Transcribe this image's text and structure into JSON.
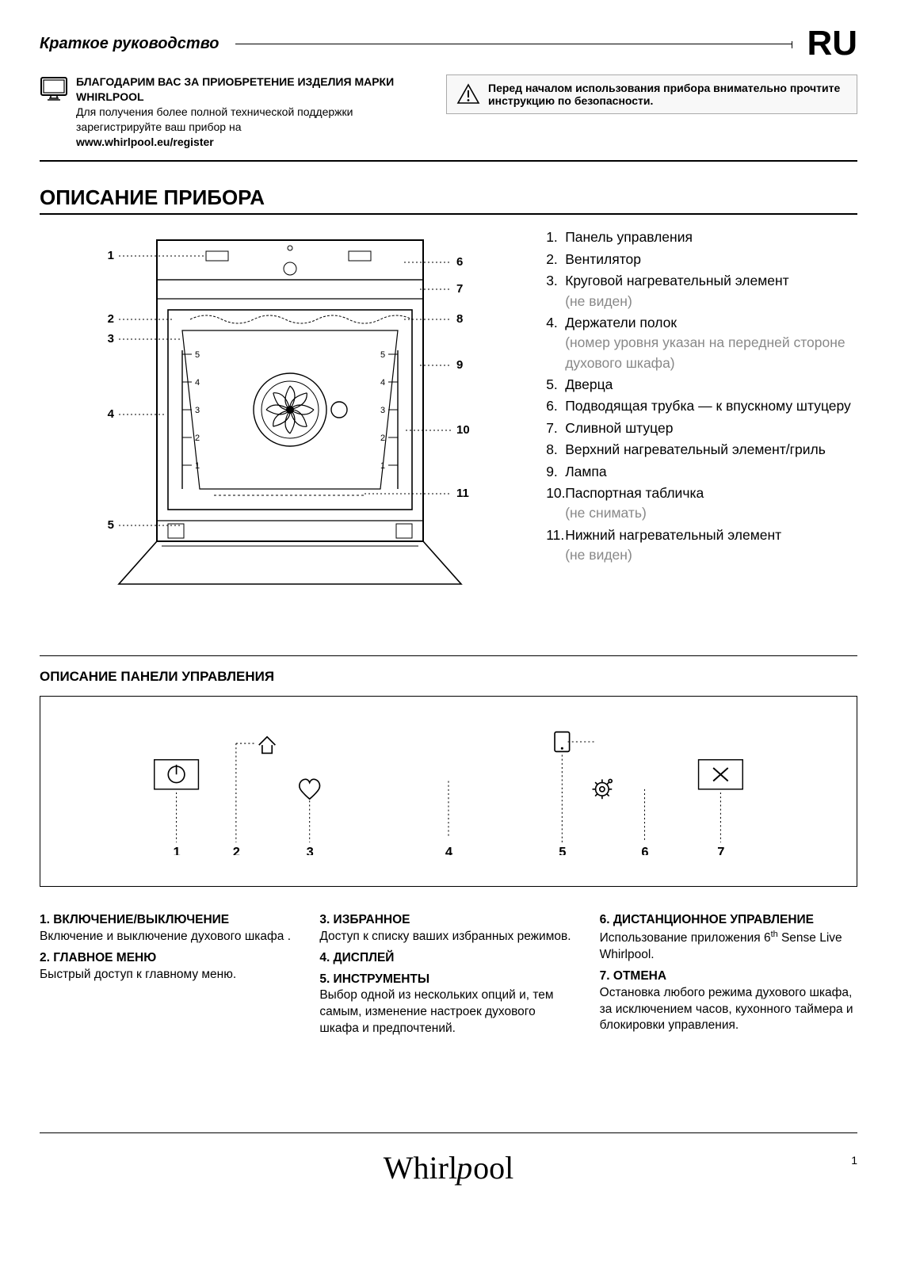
{
  "header": {
    "guide_title": "Краткое руководство",
    "lang": "RU"
  },
  "intro": {
    "thanks_bold": "БЛАГОДАРИМ ВАС ЗА ПРИОБРЕТЕНИЕ ИЗДЕЛИЯ МАРКИ WHIRLPOOL",
    "support": "Для получения более полной технической поддержки зарегистрируйте ваш прибор на",
    "url": "www.whirlpool.eu/register",
    "safety_bold_prefix": "Перед началом использования прибора внимательно прочтите инструкцию по безопасности."
  },
  "product": {
    "section_title": "ОПИСАНИЕ ПРИБОРА",
    "diagram_left_callouts": [
      "1",
      "2",
      "3",
      "4",
      "5"
    ],
    "diagram_right_callouts": [
      "6",
      "7",
      "8",
      "9",
      "10",
      "11"
    ],
    "shelf_numbers": [
      "5",
      "4",
      "3",
      "2",
      "1"
    ],
    "parts": [
      {
        "n": "1.",
        "label": "Панель управления"
      },
      {
        "n": "2.",
        "label": "Вентилятор"
      },
      {
        "n": "3.",
        "label": "Круговой нагревательный элемент",
        "note": "(не виден)"
      },
      {
        "n": "4.",
        "label": "Держатели полок",
        "note": "(номер уровня указан на передней стороне духового шкафа)"
      },
      {
        "n": "5.",
        "label": "Дверца"
      },
      {
        "n": "6.",
        "label": "Подводящая трубка — к впускному штуцеру"
      },
      {
        "n": "7.",
        "label": "Сливной штуцер"
      },
      {
        "n": "8.",
        "label": "Верхний нагревательный элемент/гриль"
      },
      {
        "n": "9.",
        "label": "Лампа"
      },
      {
        "n": "10.",
        "label": "Паспортная табличка",
        "note": "(не снимать)"
      },
      {
        "n": "11.",
        "label": "Нижний нагревательный элемент",
        "note": "(не виден)"
      }
    ]
  },
  "control_panel": {
    "subsection": "ОПИСАНИЕ ПАНЕЛИ УПРАВЛЕНИЯ",
    "numbers": [
      "1",
      "2",
      "3",
      "4",
      "5",
      "6",
      "7"
    ],
    "items": [
      {
        "title": "1. ВКЛЮЧЕНИЕ/ВЫКЛЮЧЕНИЕ",
        "text": "Включение и выключение духового шкафа ."
      },
      {
        "title": "2. ГЛАВНОЕ МЕНЮ",
        "text": "Быстрый доступ к главному меню."
      },
      {
        "title": "3. ИЗБРАННОЕ",
        "text": "Доступ к списку ваших избранных режимов."
      },
      {
        "title": "4. ДИСПЛЕЙ",
        "text": ""
      },
      {
        "title": "5. ИНСТРУМЕНТЫ",
        "text": "Выбор одной из нескольких опций и, тем самым, изменение настроек духового шкафа и предпочтений."
      },
      {
        "title": "6. ДИСТАНЦИОННОЕ УПРАВЛЕНИЕ",
        "text": "Использование приложения 6ᵗʰ Sense Live Whirlpool."
      },
      {
        "title": "7. ОТМЕНА",
        "text": "Остановка любого режима духового шкафа, за исключением часов, кухонного таймера и блокировки управления."
      }
    ]
  },
  "footer": {
    "brand": "Whirlpool",
    "page": "1"
  },
  "colors": {
    "text": "#000000",
    "muted": "#888888",
    "bg": "#ffffff",
    "box_bg": "#f8f8f8"
  }
}
